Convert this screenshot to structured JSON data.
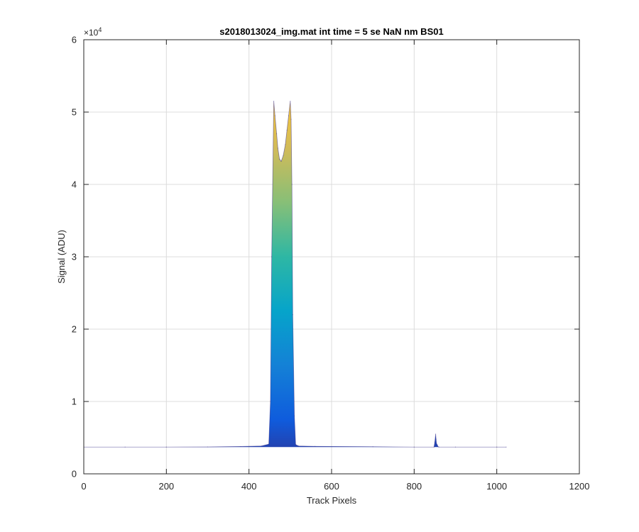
{
  "chart_data": {
    "type": "area",
    "title": "s2018013024_img.mat int time = 5 se  NaN nm BS01",
    "xlabel": "Track Pixels",
    "ylabel": "Signal (ADU)",
    "xlim": [
      0,
      1200
    ],
    "ylim": [
      0,
      60000
    ],
    "x_ticks": [
      "0",
      "200",
      "400",
      "600",
      "800",
      "1000",
      "1200"
    ],
    "y_ticks": [
      "0",
      "1",
      "2",
      "3",
      "4",
      "5",
      "6"
    ],
    "y_exponent_base": "×10",
    "y_exponent_power": "4",
    "grid": true,
    "colormap": "parula",
    "colormap_stops": [
      "#352a87",
      "#0f5cdd",
      "#1481d6",
      "#06a4ca",
      "#2eb7a4",
      "#87bf77",
      "#d1bb59",
      "#fec832",
      "#f9fb0e"
    ],
    "x": [
      0,
      100,
      200,
      300,
      380,
      430,
      448,
      452,
      455,
      460,
      463,
      467,
      470,
      474,
      478,
      483,
      488,
      492,
      496,
      500,
      502,
      504,
      506,
      510,
      513,
      520,
      560,
      700,
      800,
      848,
      850,
      852,
      853,
      854,
      856,
      858,
      860,
      900,
      1000,
      1023
    ],
    "values": [
      3700,
      3700,
      3700,
      3720,
      3780,
      3850,
      4100,
      10000,
      30000,
      51500,
      49500,
      47000,
      45000,
      43500,
      43200,
      44000,
      45500,
      47500,
      49500,
      51500,
      49000,
      40000,
      22000,
      8000,
      4050,
      3850,
      3800,
      3750,
      3700,
      3700,
      4400,
      5500,
      4800,
      4200,
      4000,
      3750,
      3700,
      3700,
      3700,
      3700
    ]
  }
}
